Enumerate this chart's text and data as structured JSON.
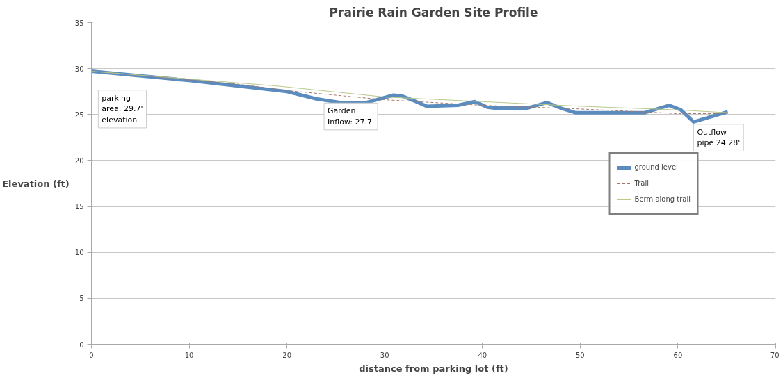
{
  "chart_data": {
    "type": "line",
    "title": "Prairie Rain Garden Site Profile",
    "xlabel": "distance from parking lot (ft)",
    "ylabel": "Elevation (ft)",
    "xlim": [
      0,
      70
    ],
    "ylim": [
      0,
      35
    ],
    "xticks": [
      0,
      10,
      20,
      30,
      40,
      50,
      60,
      70
    ],
    "yticks": [
      0,
      5,
      10,
      15,
      20,
      25,
      30,
      35
    ],
    "grid": "y",
    "legend": "right",
    "series": [
      {
        "name": "ground level",
        "color": "#5b8cc0",
        "line_style": "solid",
        "x": [
          0,
          10,
          20,
          23,
          25.4,
          28.1,
          30.9,
          31.8,
          33,
          34.3,
          37.5,
          39.2,
          40.5,
          41.2,
          44.6,
          46.6,
          48,
          49.5,
          56.6,
          59.1,
          60.3,
          61.6,
          65.1
        ],
        "values": [
          29.7,
          28.7,
          27.5,
          26.7,
          26.3,
          26.3,
          27.1,
          27.0,
          26.5,
          25.9,
          26.0,
          26.4,
          25.8,
          25.7,
          25.7,
          26.3,
          25.7,
          25.2,
          25.2,
          26.0,
          25.5,
          24.2,
          25.3
        ]
      },
      {
        "name": "Trail",
        "color": "#a5776a",
        "line_style": "dashed",
        "x": [
          0,
          15,
          20,
          30,
          40,
          50,
          60,
          65
        ],
        "values": [
          29.7,
          28.3,
          27.6,
          26.6,
          26.0,
          25.6,
          25.1,
          25.1
        ]
      },
      {
        "name": "Berm along trail",
        "color": "#b8c98a",
        "line_style": "solid",
        "x": [
          0,
          19,
          30,
          40,
          50,
          60,
          65
        ],
        "values": [
          29.7,
          28.1,
          26.9,
          26.4,
          25.9,
          25.5,
          25.2
        ]
      }
    ],
    "annotations": [
      "parking\narea: 29.7'\nelevation",
      "Garden\nInflow: 27.7'",
      "Outflow\npipe 24.28'"
    ]
  }
}
